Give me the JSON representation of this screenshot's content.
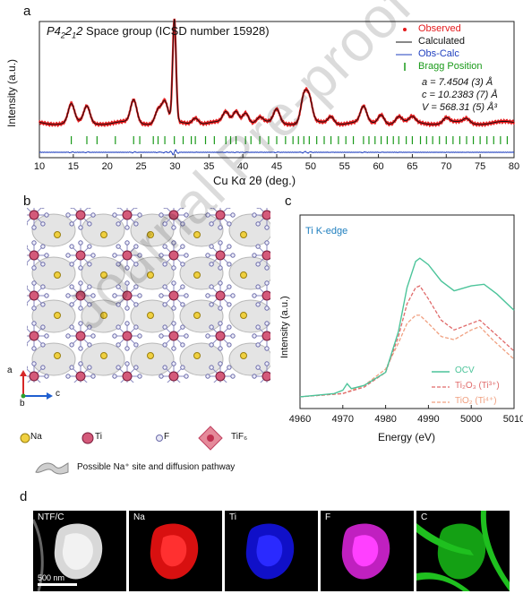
{
  "panel_labels": {
    "a": "a",
    "b": "b",
    "c": "c",
    "d": "d"
  },
  "panel_a": {
    "title_prefix": "P4",
    "title_sub1": "2",
    "title_mid": "2",
    "title_sub2": "1",
    "title_end": "2",
    "title_rest": " Space group (ICSD number 15928)",
    "ylabel": "Intensity (a.u.)",
    "xlabel": "Cu Kα 2θ (deg.)",
    "legend": [
      "Observed",
      "Calculated",
      "Obs-Calc",
      "Bragg Position"
    ],
    "params": [
      "a = 7.4504 (3) Å",
      "c = 10.2383 (7) Å",
      "V = 568.31 (5) Å³"
    ],
    "colors": {
      "observed": "#e41a1c",
      "calculated": "#111111",
      "diff": "#1f3fbf",
      "bragg": "#1a9a1a"
    }
  },
  "panel_b": {
    "axes": {
      "a": "a",
      "b": "b",
      "c": "c"
    },
    "legend": {
      "na": "Na",
      "ti": "Ti",
      "f": "F",
      "tif6": "TiF₆",
      "pathway": "Possible Na⁺ site and diffusion pathway"
    }
  },
  "panel_c": {
    "title": "Ti K-edge",
    "ylabel": "Intensity (a.u.)",
    "xlabel": "Energy (eV)",
    "legend": {
      "ocv": "OCV",
      "ti2o3": "Ti₂O₃ (Ti³⁺)",
      "tio2": "TiO₂ (Ti⁴⁺)"
    },
    "colors": {
      "ocv": "#4cc49a",
      "ti2o3": "#e06a6a",
      "tio2": "#f0a080"
    }
  },
  "panel_d": {
    "tiles": [
      "NTF/C",
      "Na",
      "Ti",
      "F",
      "C"
    ],
    "scalebar": "500 nm"
  },
  "watermark": "Journal Pre-proof",
  "chart_data": [
    {
      "type": "line",
      "title": "P4₂2₁2 Space group (ICSD number 15928)",
      "xlabel": "Cu Kα 2θ (deg.)",
      "ylabel": "Intensity (a.u.)",
      "xlim": [
        10,
        80
      ],
      "xticks": [
        10,
        15,
        20,
        25,
        30,
        35,
        40,
        45,
        50,
        55,
        60,
        65,
        70,
        75,
        80
      ],
      "peaks_2theta": [
        14.7,
        17.0,
        23.9,
        27.5,
        28.5,
        29.9,
        33.0,
        37.5,
        39.0,
        40.4,
        42.5,
        45.0,
        49.0,
        49.8,
        53.0,
        57.8,
        60.4,
        63.0,
        65.0,
        70.0,
        73.0
      ],
      "peak_heights": [
        0.18,
        0.16,
        0.22,
        0.13,
        0.2,
        1.0,
        0.06,
        0.1,
        0.12,
        0.11,
        0.05,
        0.13,
        0.25,
        0.22,
        0.07,
        0.15,
        0.09,
        0.06,
        0.05,
        0.05,
        0.04
      ],
      "bragg_positions": [
        14.7,
        17.0,
        18.5,
        21.2,
        23.9,
        24.8,
        26.8,
        27.5,
        28.5,
        29.9,
        31.2,
        32.4,
        33.0,
        34.5,
        35.8,
        37.5,
        38.2,
        39.0,
        40.4,
        41.2,
        42.5,
        43.8,
        45.0,
        46.3,
        47.4,
        48.2,
        49.0,
        49.8,
        50.9,
        52.0,
        53.0,
        54.1,
        55.2,
        56.3,
        57.8,
        58.6,
        59.5,
        60.4,
        61.3,
        62.2,
        63.0,
        64.1,
        65.0,
        66.2,
        67.1,
        68.0,
        69.0,
        70.0,
        71.0,
        72.0,
        73.0,
        74.0,
        75.0,
        76.0,
        77.0,
        78.0,
        79.0
      ],
      "series": [
        {
          "name": "Observed"
        },
        {
          "name": "Calculated"
        },
        {
          "name": "Obs-Calc"
        },
        {
          "name": "Bragg Position"
        }
      ],
      "annotations": [
        "a = 7.4504 (3) Å",
        "c = 10.2383 (7) Å",
        "V = 568.31 (5) Å³"
      ]
    },
    {
      "type": "line",
      "title": "Ti K-edge",
      "xlabel": "Energy (eV)",
      "ylabel": "Intensity (a.u.)",
      "xlim": [
        4960,
        5010
      ],
      "xticks": [
        4960,
        4970,
        4980,
        4990,
        5000,
        5010
      ],
      "series": [
        {
          "name": "OCV",
          "x": [
            4960,
            4968,
            4970,
            4971,
            4972,
            4975,
            4980,
            4983,
            4985,
            4987,
            4988,
            4990,
            4993,
            4996,
            5000,
            5003,
            5006,
            5010
          ],
          "y": [
            0.05,
            0.07,
            0.09,
            0.13,
            0.1,
            0.12,
            0.2,
            0.45,
            0.72,
            0.88,
            0.9,
            0.86,
            0.76,
            0.7,
            0.73,
            0.74,
            0.68,
            0.58
          ]
        },
        {
          "name": "Ti₂O₃ (Ti³⁺)",
          "x": [
            4960,
            4970,
            4975,
            4980,
            4983,
            4985,
            4987,
            4988,
            4990,
            4993,
            4996,
            5000,
            5002,
            5005,
            5010
          ],
          "y": [
            0.05,
            0.07,
            0.11,
            0.2,
            0.42,
            0.62,
            0.72,
            0.73,
            0.65,
            0.52,
            0.46,
            0.5,
            0.52,
            0.45,
            0.33
          ]
        },
        {
          "name": "TiO₂ (Ti⁴⁺)",
          "x": [
            4960,
            4970,
            4975,
            4980,
            4983,
            4985,
            4987,
            4988,
            4990,
            4993,
            4996,
            5000,
            5002,
            5005,
            5010
          ],
          "y": [
            0.05,
            0.07,
            0.12,
            0.22,
            0.38,
            0.5,
            0.55,
            0.55,
            0.5,
            0.42,
            0.4,
            0.46,
            0.48,
            0.4,
            0.28
          ]
        }
      ]
    }
  ]
}
